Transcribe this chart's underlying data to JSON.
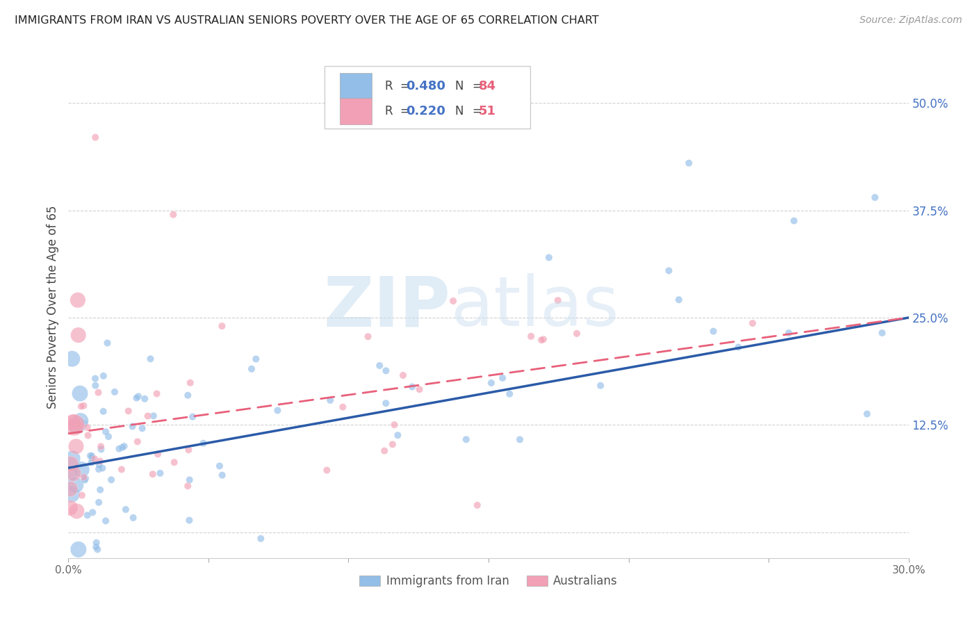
{
  "title": "IMMIGRANTS FROM IRAN VS AUSTRALIAN SENIORS POVERTY OVER THE AGE OF 65 CORRELATION CHART",
  "source": "Source: ZipAtlas.com",
  "ylabel": "Seniors Poverty Over the Age of 65",
  "x_range": [
    0.0,
    0.3
  ],
  "y_range": [
    -0.03,
    0.555
  ],
  "blue_color": "#92BEE8",
  "pink_color": "#F2A0B5",
  "blue_line_color": "#2B5BA8",
  "pink_line_color": "#E8607A",
  "legend_blue_R": "0.480",
  "legend_blue_N": "84",
  "legend_pink_R": "0.220",
  "legend_pink_N": "51",
  "blue_line_x0": 0.0,
  "blue_line_y0": 0.075,
  "blue_line_x1": 0.3,
  "blue_line_y1": 0.25,
  "pink_line_x0": 0.0,
  "pink_line_y0": 0.115,
  "pink_line_x1": 0.3,
  "pink_line_y1": 0.25,
  "y_tick_vals": [
    0.0,
    0.125,
    0.25,
    0.375,
    0.5
  ],
  "y_tick_labels": [
    "",
    "12.5%",
    "25.0%",
    "37.5%",
    "50.0%"
  ],
  "x_tick_vals": [
    0.0,
    0.05,
    0.1,
    0.15,
    0.2,
    0.25,
    0.3
  ],
  "x_tick_labels": [
    "0.0%",
    "",
    "",
    "",
    "",
    "",
    "30.0%"
  ],
  "watermark_zip": "ZIP",
  "watermark_atlas": "atlas",
  "bottom_legend_label1": "Immigrants from Iran",
  "bottom_legend_label2": "Australians"
}
